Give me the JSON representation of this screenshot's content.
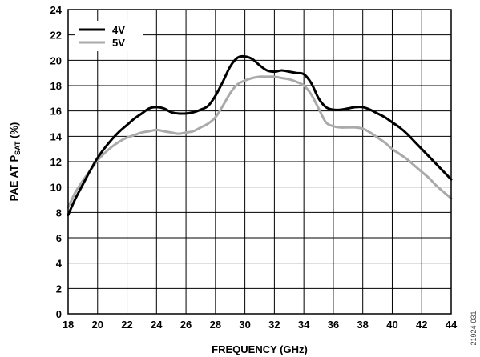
{
  "chart_data": {
    "type": "line",
    "xlabel": "FREQUENCY (GHz)",
    "ylabel": {
      "prefix": "PAE AT P",
      "subscript": "SAT",
      "suffix": " (%)"
    },
    "xlim": [
      18,
      44
    ],
    "ylim": [
      0,
      24
    ],
    "xticks": [
      18,
      20,
      22,
      24,
      26,
      28,
      30,
      32,
      34,
      36,
      38,
      40,
      42,
      44
    ],
    "yticks": [
      0,
      2,
      4,
      6,
      8,
      10,
      12,
      14,
      16,
      18,
      20,
      22,
      24
    ],
    "grid": true,
    "legend": "top-left",
    "figure_id": "21924-031",
    "series": [
      {
        "name": "4V",
        "color": "#000000",
        "x": [
          18,
          18.5,
          19,
          19.5,
          20,
          20.5,
          21,
          21.5,
          22,
          22.5,
          23,
          23.5,
          24,
          24.5,
          25,
          25.5,
          26,
          26.5,
          27,
          27.5,
          28,
          28.5,
          29,
          29.5,
          30,
          30.5,
          31,
          31.5,
          32,
          32.5,
          33,
          33.5,
          34,
          34.5,
          35,
          35.5,
          36,
          36.5,
          37,
          37.5,
          38,
          38.5,
          39,
          39.5,
          40,
          40.5,
          41,
          41.5,
          42,
          42.5,
          43,
          43.5,
          44
        ],
        "y": [
          7.8,
          9.1,
          10.2,
          11.3,
          12.3,
          13.1,
          13.8,
          14.4,
          14.9,
          15.4,
          15.8,
          16.2,
          16.3,
          16.2,
          15.9,
          15.8,
          15.8,
          15.9,
          16.1,
          16.4,
          17.2,
          18.3,
          19.5,
          20.2,
          20.3,
          20.1,
          19.6,
          19.2,
          19.1,
          19.2,
          19.1,
          19.0,
          18.9,
          18.2,
          17.0,
          16.3,
          16.1,
          16.1,
          16.2,
          16.3,
          16.3,
          16.1,
          15.8,
          15.5,
          15.1,
          14.7,
          14.2,
          13.6,
          13.0,
          12.4,
          11.8,
          11.2,
          10.6
        ]
      },
      {
        "name": "5V",
        "color": "#aaaaaa",
        "x": [
          18,
          18.5,
          19,
          19.5,
          20,
          20.5,
          21,
          21.5,
          22,
          22.5,
          23,
          23.5,
          24,
          24.5,
          25,
          25.5,
          26,
          26.5,
          27,
          27.5,
          28,
          28.5,
          29,
          29.5,
          30,
          30.5,
          31,
          31.5,
          32,
          32.5,
          33,
          33.5,
          34,
          34.5,
          35,
          35.5,
          36,
          36.5,
          37,
          37.5,
          38,
          38.5,
          39,
          39.5,
          40,
          40.5,
          41,
          41.5,
          42,
          42.5,
          43,
          43.5,
          44
        ],
        "y": [
          8.4,
          9.6,
          10.5,
          11.3,
          12.1,
          12.7,
          13.2,
          13.6,
          13.9,
          14.1,
          14.3,
          14.4,
          14.5,
          14.4,
          14.3,
          14.2,
          14.3,
          14.4,
          14.7,
          15.0,
          15.5,
          16.4,
          17.4,
          18.1,
          18.4,
          18.6,
          18.7,
          18.7,
          18.7,
          18.6,
          18.5,
          18.3,
          18.0,
          17.3,
          16.2,
          15.1,
          14.8,
          14.7,
          14.7,
          14.7,
          14.6,
          14.3,
          13.9,
          13.5,
          13.0,
          12.6,
          12.2,
          11.7,
          11.2,
          10.7,
          10.1,
          9.6,
          9.1
        ]
      }
    ]
  }
}
